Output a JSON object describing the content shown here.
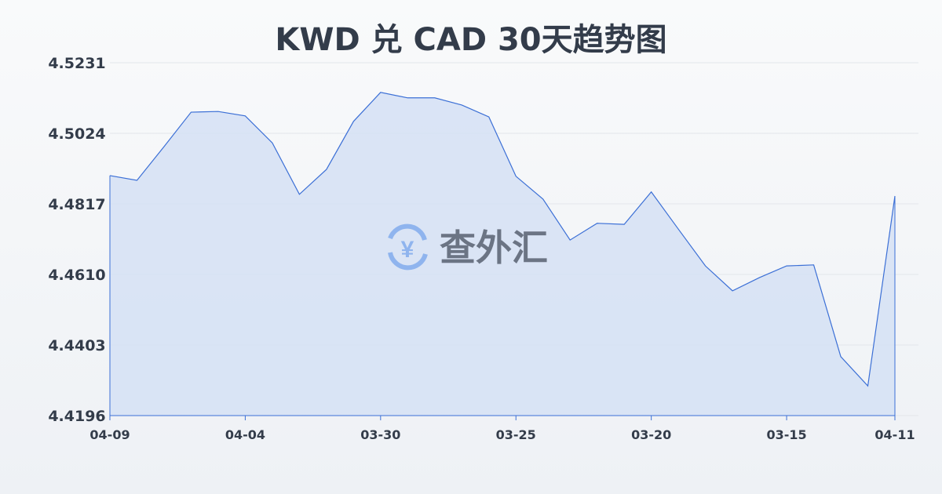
{
  "chart_data": {
    "type": "area",
    "title": "KWD 兑 CAD 30天趋势图",
    "xlabel": "",
    "ylabel": "",
    "ylim": [
      4.4196,
      4.5231
    ],
    "yticks": [
      "4.5231",
      "4.5024",
      "4.4817",
      "4.4610",
      "4.4403",
      "4.4196"
    ],
    "xticks": [
      {
        "index": 0,
        "label": "04-09"
      },
      {
        "index": 5,
        "label": "04-04"
      },
      {
        "index": 10,
        "label": "03-30"
      },
      {
        "index": 15,
        "label": "03-25"
      },
      {
        "index": 20,
        "label": "03-20"
      },
      {
        "index": 25,
        "label": "03-15"
      },
      {
        "index": 29,
        "label": "04-11"
      }
    ],
    "values": [
      4.49,
      4.4886,
      4.4985,
      4.5086,
      4.5088,
      4.5075,
      4.4996,
      4.4845,
      4.4918,
      4.5059,
      4.5144,
      4.5128,
      4.5128,
      4.5107,
      4.5072,
      4.4898,
      4.4831,
      4.4711,
      4.476,
      4.4757,
      4.4852,
      4.4743,
      4.4635,
      4.4562,
      4.4601,
      4.4635,
      4.4638,
      4.4369,
      4.4283,
      4.484
    ],
    "grid": true,
    "line_color": "#3b6fd6",
    "fill_color": "#d5e0f5"
  },
  "watermark": {
    "text": "查外汇",
    "icon": "yen-exchange-icon",
    "icon_color": "#8fb4ee"
  }
}
